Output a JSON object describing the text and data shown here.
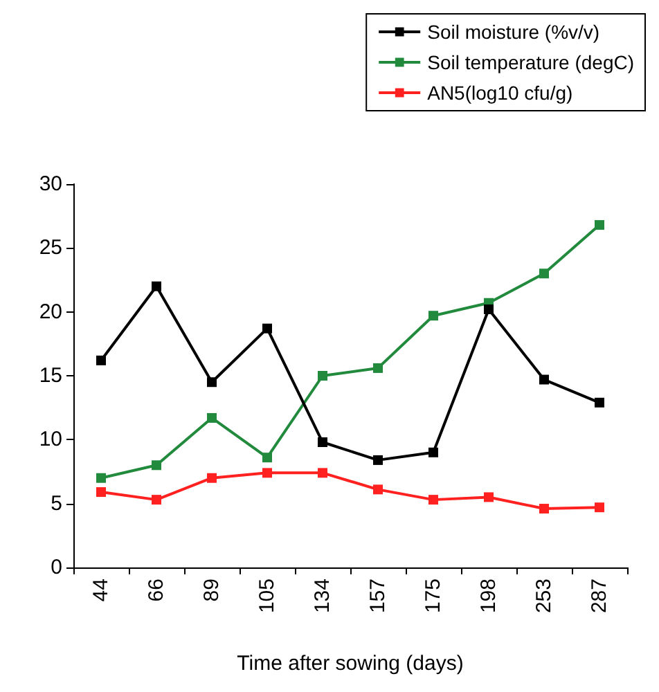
{
  "chart_data": {
    "type": "line",
    "xlabel": "Time after sowing (days)",
    "categories": [
      "44",
      "66",
      "89",
      "105",
      "134",
      "157",
      "175",
      "198",
      "253",
      "287"
    ],
    "series": [
      {
        "name": "Soil moisture (%v/v)",
        "color": "#000000",
        "values": [
          16.2,
          22,
          14.5,
          18.7,
          9.8,
          8.4,
          9,
          20.2,
          14.7,
          12.9
        ]
      },
      {
        "name": "Soil temperature (degC)",
        "color": "#218a3c",
        "values": [
          7,
          8,
          11.7,
          8.6,
          15,
          15.6,
          19.7,
          20.7,
          23,
          26.8
        ]
      },
      {
        "name": "AN5(log10 cfu/g)",
        "color": "#ff2020",
        "values": [
          5.9,
          5.3,
          7,
          7.4,
          7.4,
          6.1,
          5.3,
          5.5,
          4.6,
          4.7
        ]
      }
    ],
    "ylim": [
      0,
      30
    ],
    "yticks": [
      0,
      5,
      10,
      15,
      20,
      25,
      30
    ],
    "grid": false,
    "legend": "top right",
    "marker": "square",
    "line_style": "solid"
  }
}
